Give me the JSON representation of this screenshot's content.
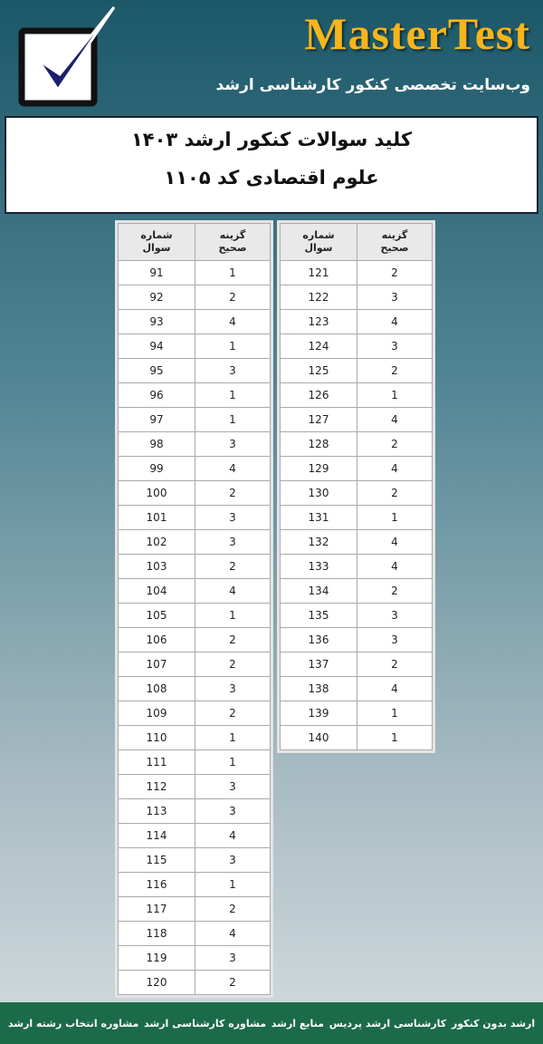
{
  "header": {
    "brand": "MasterTest",
    "tagline": "وب‌سایت تخصصی کنکور کارشناسی ارشد"
  },
  "title": {
    "line1": "کلید سوالات کنکور ارشد ۱۴۰۳",
    "line2": "علوم اقتصادی کد ۱۱۰۵"
  },
  "tables": [
    {
      "headers": [
        "شماره سوال",
        "گزینه صحیح"
      ],
      "rows": [
        [
          91,
          1
        ],
        [
          92,
          2
        ],
        [
          93,
          4
        ],
        [
          94,
          1
        ],
        [
          95,
          3
        ],
        [
          96,
          1
        ],
        [
          97,
          1
        ],
        [
          98,
          3
        ],
        [
          99,
          4
        ],
        [
          100,
          2
        ],
        [
          101,
          3
        ],
        [
          102,
          3
        ],
        [
          103,
          2
        ],
        [
          104,
          4
        ],
        [
          105,
          1
        ],
        [
          106,
          2
        ],
        [
          107,
          2
        ],
        [
          108,
          3
        ],
        [
          109,
          2
        ],
        [
          110,
          1
        ],
        [
          111,
          1
        ],
        [
          112,
          3
        ],
        [
          113,
          3
        ],
        [
          114,
          4
        ],
        [
          115,
          3
        ],
        [
          116,
          1
        ],
        [
          117,
          2
        ],
        [
          118,
          4
        ],
        [
          119,
          3
        ],
        [
          120,
          2
        ]
      ]
    },
    {
      "headers": [
        "شماره سوال",
        "گزینه صحیح"
      ],
      "rows": [
        [
          121,
          2
        ],
        [
          122,
          3
        ],
        [
          123,
          4
        ],
        [
          124,
          3
        ],
        [
          125,
          2
        ],
        [
          126,
          1
        ],
        [
          127,
          4
        ],
        [
          128,
          2
        ],
        [
          129,
          4
        ],
        [
          130,
          2
        ],
        [
          131,
          1
        ],
        [
          132,
          4
        ],
        [
          133,
          4
        ],
        [
          134,
          2
        ],
        [
          135,
          3
        ],
        [
          136,
          3
        ],
        [
          137,
          2
        ],
        [
          138,
          4
        ],
        [
          139,
          1
        ],
        [
          140,
          1
        ]
      ]
    }
  ],
  "footer": {
    "links": [
      "ارشد بدون کنکور",
      "کارشناسی ارشد پردیس",
      "منابع ارشد",
      "مشاوره کارشناسی ارشد",
      "مشاوره انتخاب رشته ارشد"
    ]
  }
}
